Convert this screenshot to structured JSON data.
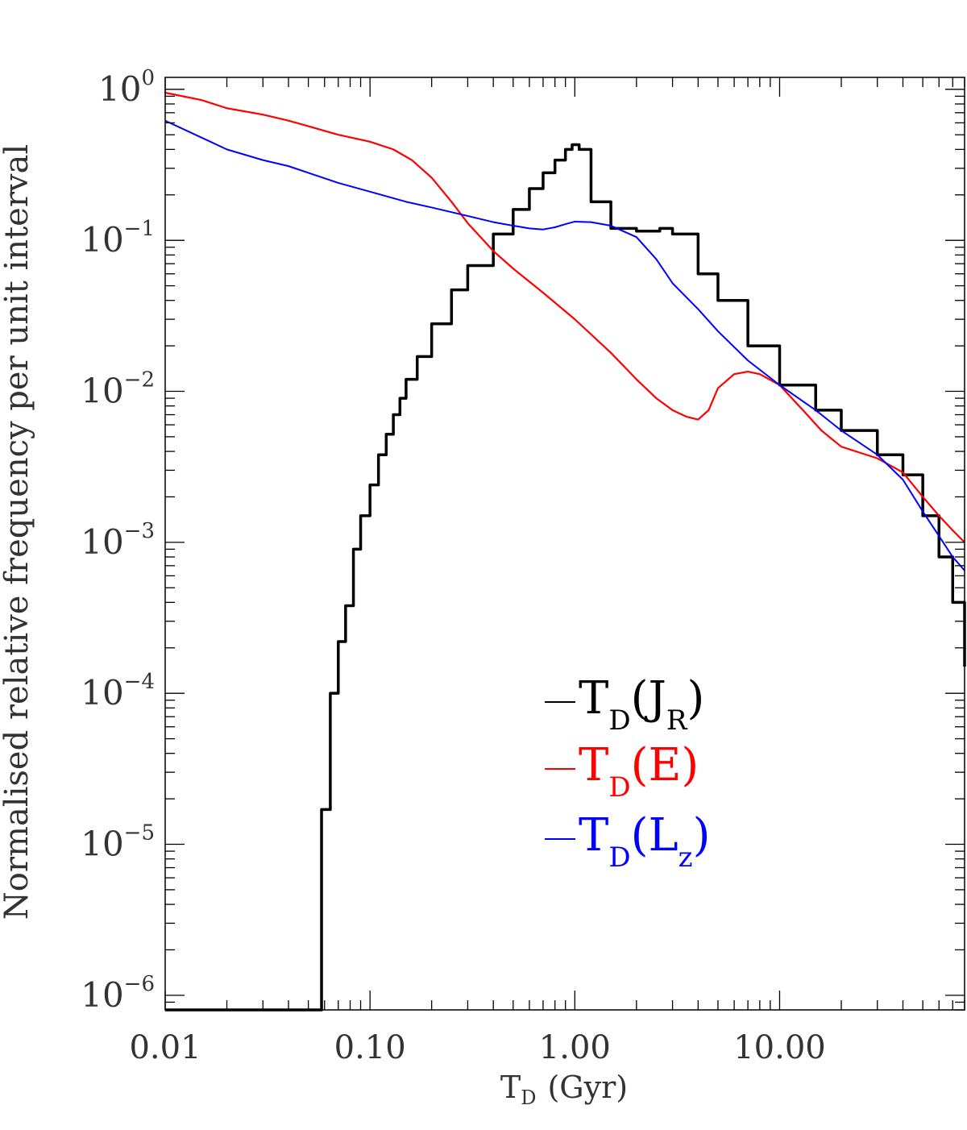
{
  "chart_data": {
    "type": "line",
    "xlabel": {
      "main": "T",
      "sub": "D",
      "unit": "(Gyr)"
    },
    "ylabel": "Normalised relative frequency per unit interval",
    "xscale": "log",
    "yscale": "log",
    "xlim": [
      0.01,
      80
    ],
    "ylim": [
      8e-07,
      1.2
    ],
    "x_ticks": [
      {
        "value": 0.01,
        "label": "0.01"
      },
      {
        "value": 0.1,
        "label": "0.10"
      },
      {
        "value": 1,
        "label": "1.00"
      },
      {
        "value": 10,
        "label": "10.00"
      }
    ],
    "y_ticks": [
      {
        "value": 1,
        "base": "10",
        "exp": "0"
      },
      {
        "value": 0.1,
        "base": "10",
        "exp": "−1"
      },
      {
        "value": 0.01,
        "base": "10",
        "exp": "−2"
      },
      {
        "value": 0.001,
        "base": "10",
        "exp": "−3"
      },
      {
        "value": 0.0001,
        "base": "10",
        "exp": "−4"
      },
      {
        "value": 1e-05,
        "base": "10",
        "exp": "−5"
      },
      {
        "value": 1e-06,
        "base": "10",
        "exp": "−6"
      }
    ],
    "grid": false,
    "legend_position": "lower-right",
    "series": [
      {
        "name": "TD(JR)",
        "legend": {
          "main": "T",
          "sub": "D",
          "arg": "J",
          "argsub": "R"
        },
        "color": "#000000",
        "step": true,
        "x": [
          0.01,
          0.055,
          0.058,
          0.064,
          0.07,
          0.076,
          0.083,
          0.09,
          0.1,
          0.11,
          0.12,
          0.13,
          0.14,
          0.15,
          0.17,
          0.2,
          0.25,
          0.3,
          0.4,
          0.5,
          0.6,
          0.7,
          0.8,
          0.9,
          0.97,
          1.05,
          1.2,
          1.5,
          2.0,
          2.6,
          3.0,
          4.0,
          5.0,
          7.0,
          10.0,
          15.0,
          20.0,
          30.0,
          40.0,
          50.0,
          60.0,
          70.0,
          80.0
        ],
        "y": [
          8e-07,
          8e-07,
          1.7e-05,
          0.0001,
          0.00022,
          0.00038,
          0.0009,
          0.0015,
          0.0024,
          0.0038,
          0.0052,
          0.007,
          0.009,
          0.012,
          0.017,
          0.028,
          0.047,
          0.068,
          0.11,
          0.16,
          0.22,
          0.28,
          0.34,
          0.4,
          0.43,
          0.4,
          0.18,
          0.12,
          0.115,
          0.12,
          0.11,
          0.06,
          0.04,
          0.02,
          0.011,
          0.0075,
          0.0055,
          0.0038,
          0.0028,
          0.0015,
          0.0008,
          0.0004,
          0.00015
        ]
      },
      {
        "name": "TD(E)",
        "legend": {
          "main": "T",
          "sub": "D",
          "arg": "E",
          "argsub": ""
        },
        "color": "#ff0000",
        "step": false,
        "x": [
          0.01,
          0.015,
          0.02,
          0.03,
          0.04,
          0.05,
          0.07,
          0.1,
          0.13,
          0.16,
          0.2,
          0.25,
          0.3,
          0.4,
          0.5,
          0.7,
          1.0,
          1.5,
          2.0,
          2.5,
          3.0,
          3.5,
          4.0,
          4.5,
          5.0,
          6.0,
          7.0,
          8.0,
          10.0,
          13.0,
          16.0,
          20.0,
          25.0,
          30.0,
          40.0,
          50.0,
          60.0,
          70.0,
          80.0
        ],
        "y": [
          0.95,
          0.85,
          0.75,
          0.68,
          0.62,
          0.57,
          0.5,
          0.45,
          0.4,
          0.34,
          0.26,
          0.18,
          0.13,
          0.085,
          0.065,
          0.045,
          0.03,
          0.018,
          0.012,
          0.009,
          0.0075,
          0.0068,
          0.0065,
          0.0075,
          0.0105,
          0.013,
          0.0135,
          0.013,
          0.011,
          0.0075,
          0.0055,
          0.0043,
          0.0039,
          0.0036,
          0.0029,
          0.002,
          0.0015,
          0.0012,
          0.001
        ]
      },
      {
        "name": "TD(LZ)",
        "legend": {
          "main": "T",
          "sub": "D",
          "arg": "L",
          "argsub": "z"
        },
        "color": "#0000ff",
        "step": false,
        "x": [
          0.01,
          0.015,
          0.02,
          0.03,
          0.04,
          0.05,
          0.07,
          0.1,
          0.15,
          0.2,
          0.3,
          0.4,
          0.5,
          0.6,
          0.7,
          0.8,
          0.9,
          1.0,
          1.2,
          1.5,
          2.0,
          2.5,
          3.0,
          4.0,
          5.0,
          7.0,
          10.0,
          15.0,
          20.0,
          30.0,
          40.0,
          50.0,
          60.0,
          70.0,
          80.0
        ],
        "y": [
          0.62,
          0.48,
          0.4,
          0.34,
          0.31,
          0.28,
          0.24,
          0.21,
          0.18,
          0.165,
          0.145,
          0.132,
          0.125,
          0.12,
          0.118,
          0.122,
          0.128,
          0.133,
          0.132,
          0.125,
          0.105,
          0.075,
          0.052,
          0.035,
          0.025,
          0.016,
          0.011,
          0.0075,
          0.0055,
          0.0038,
          0.0026,
          0.0016,
          0.0011,
          0.0008,
          0.00065
        ]
      }
    ]
  }
}
